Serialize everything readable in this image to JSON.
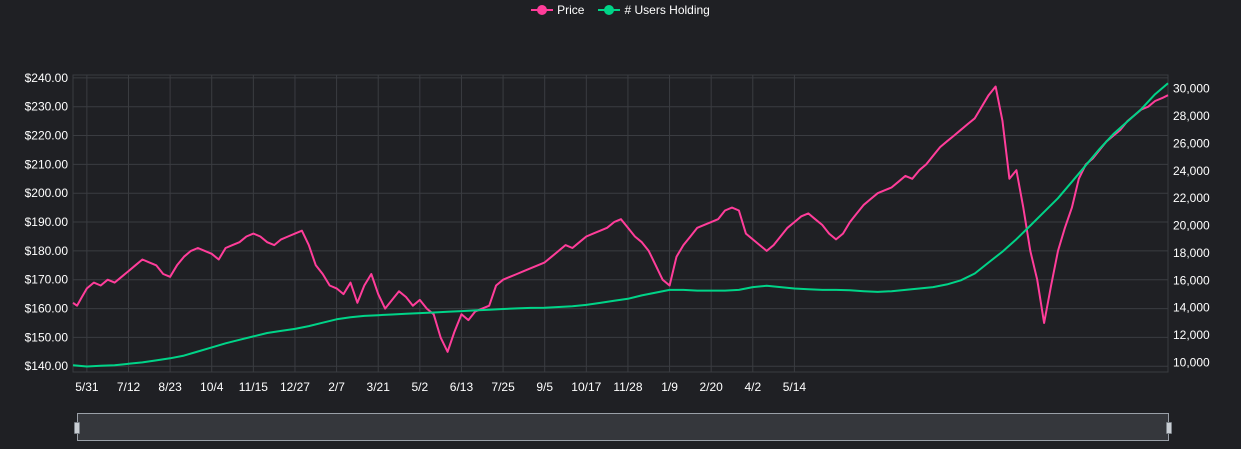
{
  "legend": {
    "price_label": "Price",
    "users_label": "# Users Holding"
  },
  "colors": {
    "price": "#ff3d9a",
    "users": "#00d488",
    "background": "#1f2024",
    "grid": "#3a3c41"
  },
  "chart_data": {
    "type": "line",
    "title": "",
    "xlabel": "",
    "ylabel": "",
    "grid": true,
    "legend_position": "top-center",
    "x_tick_labels": [
      "5/31",
      "7/12",
      "8/23",
      "10/4",
      "11/15",
      "12/27",
      "2/7",
      "3/21",
      "5/2",
      "6/13",
      "7/25",
      "9/5",
      "10/17",
      "11/28",
      "1/9",
      "2/20",
      "4/2",
      "5/14"
    ],
    "y_left": {
      "series": "Price",
      "range": [
        138,
        241
      ],
      "tick_values": [
        140,
        150,
        160,
        170,
        180,
        190,
        200,
        210,
        220,
        230,
        240
      ],
      "tick_labels": [
        "$140.00",
        "$150.00",
        "$160.00",
        "$170.00",
        "$180.00",
        "$190.00",
        "$200.00",
        "$210.00",
        "$220.00",
        "$230.00",
        "$240.00"
      ]
    },
    "y_right": {
      "series": "# Users Holding",
      "range": [
        9300,
        31000
      ],
      "tick_values": [
        10000,
        12000,
        14000,
        16000,
        18000,
        20000,
        22000,
        24000,
        26000,
        28000,
        30000
      ],
      "tick_labels": [
        "10,000",
        "12,000",
        "14,000",
        "16,000",
        "18,000",
        "20,000",
        "22,000",
        "24,000",
        "26,000",
        "28,000",
        "30,000"
      ]
    },
    "x_range": [
      -14,
      1091
    ],
    "series": [
      {
        "name": "Price",
        "axis": "left",
        "x": [
          -14,
          -10,
          -5,
          0,
          7,
          14,
          21,
          28,
          35,
          42,
          49,
          56,
          63,
          70,
          77,
          84,
          91,
          98,
          105,
          112,
          119,
          126,
          133,
          140,
          147,
          154,
          161,
          168,
          175,
          182,
          189,
          196,
          203,
          210,
          217,
          224,
          231,
          238,
          245,
          252,
          259,
          266,
          273,
          280,
          287,
          294,
          301,
          308,
          315,
          322,
          329,
          336,
          343,
          350,
          357,
          364,
          371,
          378,
          385,
          392,
          399,
          406,
          413,
          420,
          427,
          434,
          441,
          448,
          455,
          462,
          469,
          476,
          483,
          490,
          497,
          504,
          511,
          518,
          525,
          532,
          539,
          546,
          553,
          560,
          567,
          574,
          581,
          588,
          595,
          602,
          609,
          616,
          623,
          630,
          637,
          644,
          651,
          658,
          665,
          672,
          679,
          686,
          693,
          700,
          707,
          714,
          721,
          728,
          735,
          742,
          749,
          756,
          763,
          770,
          777,
          784,
          791,
          798,
          805,
          812,
          819,
          826,
          833,
          840,
          847,
          854,
          861,
          868,
          875,
          882,
          889,
          896,
          903,
          910,
          917,
          924,
          931,
          938,
          945,
          952,
          959,
          966,
          973,
          980,
          987,
          994,
          1001,
          1008,
          1015,
          1022,
          1029,
          1036,
          1043,
          1050,
          1057,
          1064,
          1071,
          1078,
          1085,
          1091
        ],
        "values": [
          162,
          161,
          164,
          167,
          169,
          168,
          170,
          169,
          171,
          173,
          175,
          177,
          176,
          175,
          172,
          171,
          175,
          178,
          180,
          181,
          180,
          179,
          177,
          181,
          182,
          183,
          185,
          186,
          185,
          183,
          182,
          184,
          185,
          186,
          187,
          182,
          175,
          172,
          168,
          167,
          165,
          169,
          162,
          168,
          172,
          165,
          160,
          163,
          166,
          164,
          161,
          163,
          160,
          158,
          150,
          145,
          152,
          158,
          156,
          159,
          160,
          161,
          168,
          170,
          171,
          172,
          173,
          174,
          175,
          176,
          178,
          180,
          182,
          181,
          183,
          185,
          186,
          187,
          188,
          190,
          191,
          188,
          185,
          183,
          180,
          175,
          170,
          168,
          178,
          182,
          185,
          188,
          189,
          190,
          191,
          194,
          195,
          194,
          186,
          184,
          182,
          180,
          182,
          185,
          188,
          190,
          192,
          193,
          191,
          189,
          186,
          184,
          186,
          190,
          193,
          196,
          198,
          200,
          201,
          202,
          204,
          206,
          205,
          208,
          210,
          213,
          216,
          218,
          220,
          222,
          224,
          226,
          230,
          234,
          237,
          225,
          205,
          208,
          195,
          180,
          170,
          155,
          168,
          180,
          188,
          195,
          205,
          210,
          212,
          215,
          218,
          220,
          222,
          225,
          227,
          229,
          230,
          232,
          233,
          234
        ]
      },
      {
        "name": "# Users Holding",
        "axis": "right",
        "x": [
          -14,
          0,
          14,
          28,
          42,
          56,
          70,
          84,
          98,
          112,
          126,
          140,
          154,
          168,
          182,
          196,
          210,
          224,
          238,
          252,
          266,
          280,
          294,
          308,
          322,
          336,
          350,
          364,
          378,
          392,
          406,
          420,
          434,
          448,
          462,
          476,
          490,
          504,
          518,
          532,
          546,
          560,
          574,
          588,
          602,
          616,
          630,
          644,
          658,
          672,
          686,
          700,
          714,
          728,
          742,
          756,
          770,
          784,
          798,
          812,
          826,
          840,
          854,
          868,
          882,
          896,
          910,
          924,
          938,
          952,
          966,
          980,
          994,
          1008,
          1022,
          1036,
          1050,
          1064,
          1078,
          1091
        ],
        "values": [
          9800,
          9700,
          9750,
          9800,
          9900,
          10000,
          10150,
          10300,
          10500,
          10800,
          11100,
          11400,
          11650,
          11900,
          12150,
          12300,
          12450,
          12650,
          12900,
          13150,
          13300,
          13400,
          13450,
          13500,
          13550,
          13600,
          13650,
          13700,
          13750,
          13800,
          13850,
          13900,
          13950,
          13980,
          14000,
          14050,
          14100,
          14200,
          14350,
          14500,
          14650,
          14900,
          15100,
          15300,
          15300,
          15250,
          15250,
          15250,
          15300,
          15500,
          15600,
          15500,
          15400,
          15350,
          15300,
          15300,
          15280,
          15200,
          15150,
          15200,
          15300,
          15400,
          15500,
          15700,
          16000,
          16500,
          17300,
          18100,
          19000,
          20000,
          21000,
          22000,
          23200,
          24400,
          25600,
          26700,
          27600,
          28500,
          29600,
          30400
        ]
      }
    ]
  }
}
